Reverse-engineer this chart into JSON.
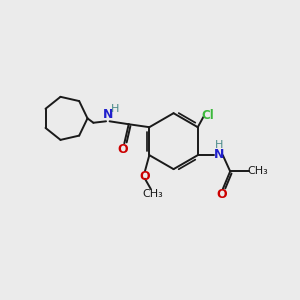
{
  "background_color": "#ebebeb",
  "bond_color": "#1a1a1a",
  "N_color": "#2020cc",
  "O_color": "#cc0000",
  "Cl_color": "#3cb83c",
  "H_color": "#4a8a8a",
  "line_width": 1.4,
  "figsize": [
    3.0,
    3.0
  ],
  "dpi": 100,
  "xlim": [
    0,
    10
  ],
  "ylim": [
    0,
    10
  ]
}
